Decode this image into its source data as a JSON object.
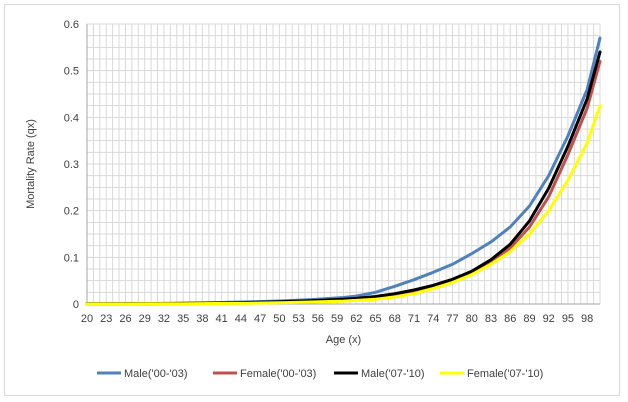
{
  "chart_data": {
    "type": "line",
    "title": "",
    "xlabel": "Age (x)",
    "ylabel": "Mortality Rate (qx)",
    "x_tick_labels": [
      "20",
      "23",
      "26",
      "29",
      "32",
      "35",
      "38",
      "41",
      "44",
      "47",
      "50",
      "53",
      "56",
      "59",
      "62",
      "65",
      "68",
      "71",
      "74",
      "77",
      "80",
      "83",
      "86",
      "89",
      "92",
      "95",
      "98"
    ],
    "y_tick_labels": [
      "0",
      "0.1",
      "0.2",
      "0.3",
      "0.4",
      "0.5",
      "0.6"
    ],
    "xlim": [
      20,
      100
    ],
    "ylim": [
      0,
      0.6
    ],
    "grid": true,
    "legend_position": "bottom",
    "x": [
      20,
      25,
      30,
      35,
      40,
      45,
      50,
      55,
      60,
      62,
      65,
      68,
      71,
      74,
      77,
      80,
      83,
      86,
      89,
      92,
      95,
      98,
      100
    ],
    "series": [
      {
        "name": "Male('00-'03)",
        "color": "#4f81bd",
        "values": [
          0.0005,
          0.0008,
          0.001,
          0.0015,
          0.003,
          0.0045,
          0.0065,
          0.0095,
          0.014,
          0.017,
          0.025,
          0.038,
          0.052,
          0.068,
          0.085,
          0.108,
          0.133,
          0.165,
          0.21,
          0.275,
          0.36,
          0.46,
          0.57
        ]
      },
      {
        "name": "Female('00-'03)",
        "color": "#c0504d",
        "values": [
          0.0003,
          0.0004,
          0.0005,
          0.0007,
          0.0012,
          0.002,
          0.003,
          0.0048,
          0.0075,
          0.009,
          0.012,
          0.017,
          0.026,
          0.038,
          0.052,
          0.068,
          0.09,
          0.12,
          0.165,
          0.23,
          0.32,
          0.42,
          0.52
        ]
      },
      {
        "name": "Male('07-'10)",
        "color": "#000000",
        "values": [
          0.0004,
          0.0006,
          0.0008,
          0.0012,
          0.002,
          0.0032,
          0.0048,
          0.007,
          0.01,
          0.012,
          0.016,
          0.022,
          0.03,
          0.04,
          0.053,
          0.07,
          0.095,
          0.128,
          0.178,
          0.248,
          0.338,
          0.44,
          0.54
        ]
      },
      {
        "name": "Female('07-'10)",
        "color": "#ffff00",
        "values": [
          0.0002,
          0.0003,
          0.0004,
          0.0006,
          0.001,
          0.0017,
          0.0027,
          0.0042,
          0.0062,
          0.0078,
          0.01,
          0.015,
          0.022,
          0.033,
          0.046,
          0.063,
          0.085,
          0.112,
          0.15,
          0.2,
          0.265,
          0.345,
          0.425
        ]
      }
    ]
  }
}
